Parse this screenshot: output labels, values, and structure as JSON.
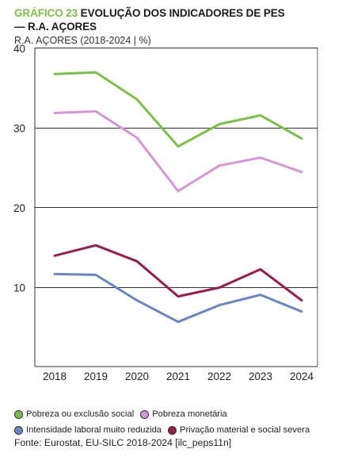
{
  "header": {
    "title_prefix": "GRÁFICO 23",
    "title_rest": " EVOLUÇÃO DOS INDICADORES DE PES",
    "title_line2": "— R.A. AÇORES",
    "subtitle": "R.A. AÇORES (2018-2024 | %)"
  },
  "footer": {
    "source": "Fonte: Eurostat, EU-SILC 2018-2024 [ilc_peps11n]"
  },
  "colors": {
    "title_accent": "#7ac143",
    "grid": "#333333"
  },
  "chart_data": {
    "type": "line",
    "x": [
      "2018",
      "2019",
      "2020",
      "2021",
      "2022",
      "2023",
      "2024"
    ],
    "yticks": [
      "40",
      "30",
      "20",
      "10"
    ],
    "ylim": [
      0,
      40
    ],
    "grid": true,
    "legend_position": "bottom",
    "series": [
      {
        "name": "Pobreza ou exclusão social",
        "color": "#7ac143",
        "values": [
          36.7,
          36.9,
          33.5,
          27.6,
          30.4,
          31.5,
          28.6
        ]
      },
      {
        "name": "Pobreza monetária",
        "color": "#d497d4",
        "values": [
          31.8,
          32.0,
          28.7,
          22.0,
          25.2,
          26.2,
          24.4
        ]
      },
      {
        "name": "Intensidade laboral muito reduzida",
        "color": "#6b84c7",
        "values": [
          11.6,
          11.5,
          8.3,
          5.6,
          7.7,
          9.0,
          6.9
        ]
      },
      {
        "name": "Privação material e social severa",
        "color": "#9b1b4d",
        "values": [
          13.9,
          15.2,
          13.2,
          8.8,
          9.9,
          12.2,
          8.3
        ]
      }
    ]
  }
}
